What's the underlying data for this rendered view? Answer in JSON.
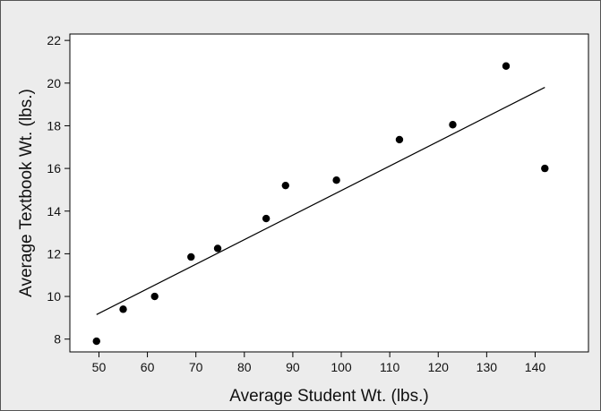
{
  "chart_data": {
    "type": "scatter",
    "title": "",
    "xlabel": "Average Student Wt. (lbs.)",
    "ylabel": "Average Textbook Wt. (lbs.)",
    "xlim": [
      44,
      151
    ],
    "ylim": [
      7.4,
      22.3
    ],
    "xticks": [
      50,
      60,
      70,
      80,
      90,
      100,
      110,
      120,
      130,
      140
    ],
    "yticks": [
      8,
      10,
      12,
      14,
      16,
      18,
      20,
      22
    ],
    "grid": false,
    "legend": "none",
    "point_color": "#000000",
    "line_color": "#000000",
    "background_color": "#ececec",
    "plot_background_color": "#ffffff",
    "points": [
      {
        "x": 49.5,
        "y": 7.9
      },
      {
        "x": 55,
        "y": 9.4
      },
      {
        "x": 61.5,
        "y": 10.0
      },
      {
        "x": 69,
        "y": 11.85
      },
      {
        "x": 74.5,
        "y": 12.25
      },
      {
        "x": 84.5,
        "y": 13.65
      },
      {
        "x": 88.5,
        "y": 15.2
      },
      {
        "x": 99,
        "y": 15.45
      },
      {
        "x": 112,
        "y": 17.35
      },
      {
        "x": 123,
        "y": 18.05
      },
      {
        "x": 134,
        "y": 20.8
      },
      {
        "x": 142,
        "y": 16.0
      }
    ],
    "fit_line": {
      "x": [
        49.5,
        142
      ],
      "y": [
        9.15,
        19.8
      ]
    }
  }
}
